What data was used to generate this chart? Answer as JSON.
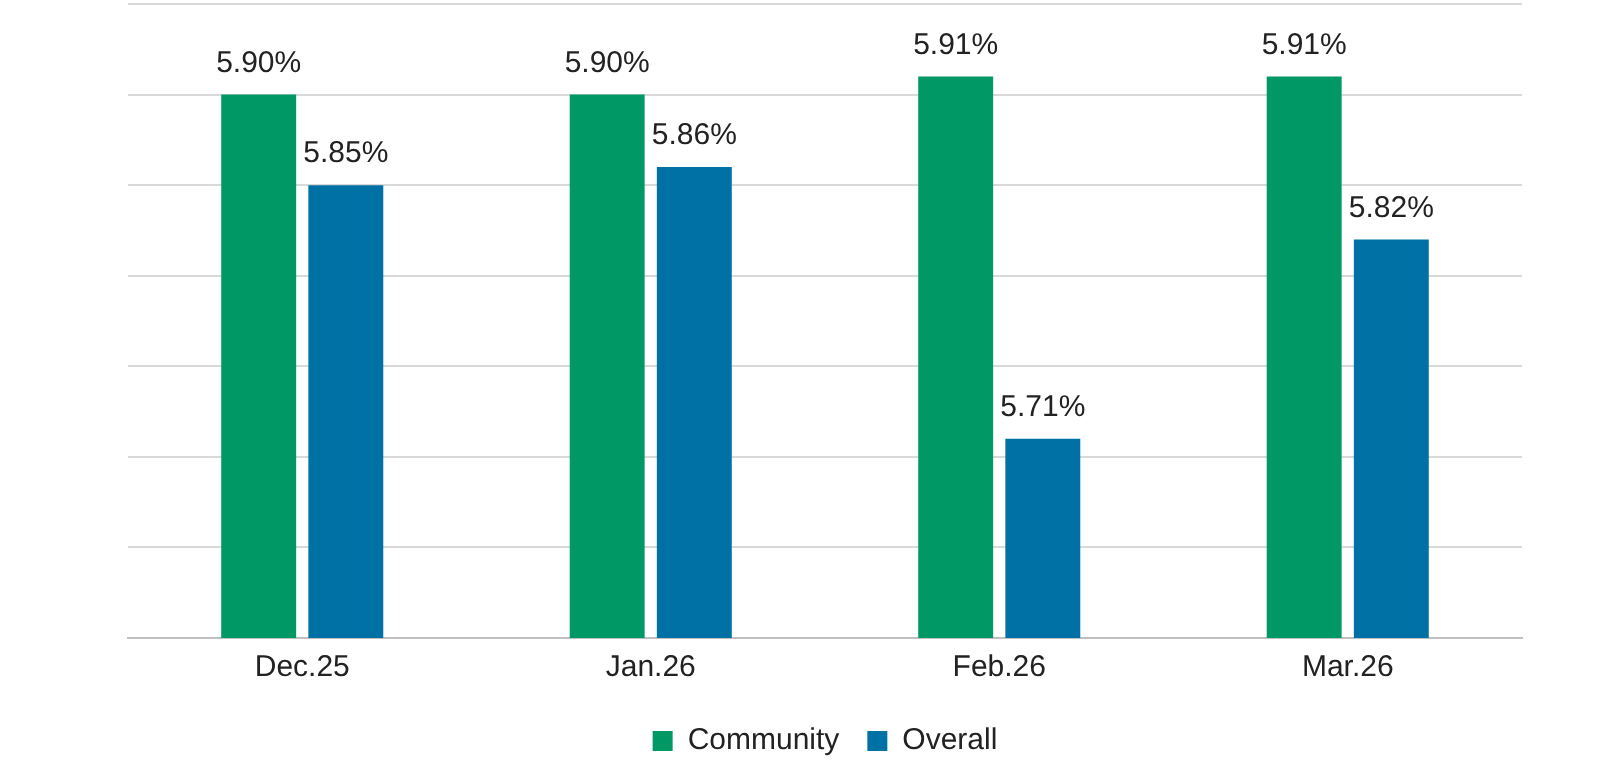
{
  "chart_data": {
    "type": "bar",
    "categories": [
      "Dec.25",
      "Jan.26",
      "Feb.26",
      "Mar.26"
    ],
    "series": [
      {
        "name": "Community",
        "color": "#009966",
        "values": [
          5.9,
          5.9,
          5.91,
          5.91
        ],
        "value_labels": [
          "5.90%",
          "5.90%",
          "5.91%",
          "5.91%"
        ]
      },
      {
        "name": "Overall",
        "color": "#0071a4",
        "values": [
          5.85,
          5.86,
          5.71,
          5.82
        ],
        "value_labels": [
          "5.85%",
          "5.86%",
          "5.71%",
          "5.82%"
        ]
      }
    ],
    "ylim": [
      5.6,
      5.95
    ],
    "yticks": [
      {
        "value": 5.6,
        "label": null
      },
      {
        "value": 5.65,
        "label": null
      },
      {
        "value": 5.7,
        "label": null
      },
      {
        "value": 5.75,
        "label": null
      },
      {
        "value": 5.8,
        "label": null
      },
      {
        "value": 5.85,
        "label": null
      },
      {
        "value": 5.9,
        "label": null
      },
      {
        "value": 5.95,
        "label": null
      }
    ],
    "tick_labels": "x",
    "grid": "y",
    "legend": "bottom"
  }
}
